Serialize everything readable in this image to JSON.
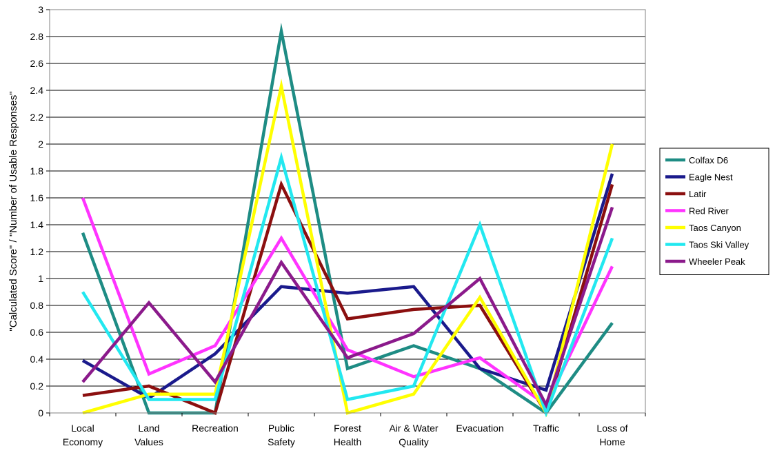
{
  "chart_data": {
    "type": "line",
    "title": "",
    "xlabel": "",
    "ylabel": "\"Calculated Score\" / \"Number of Usable Responses\"",
    "ylim": [
      0,
      3
    ],
    "ytick_step": 0.2,
    "yticks": [
      "0",
      "0.2",
      "0.4",
      "0.6",
      "0.8",
      "1",
      "1.2",
      "1.4",
      "1.6",
      "1.8",
      "2",
      "2.2",
      "2.4",
      "2.6",
      "2.8",
      "3"
    ],
    "grid": true,
    "legend_position": "right",
    "categories": [
      [
        "Local",
        "Economy"
      ],
      [
        "Land",
        "Values"
      ],
      [
        "Recreation"
      ],
      [
        "Public",
        "Safety"
      ],
      [
        "Forest",
        "Health"
      ],
      [
        "Air & Water",
        "Quality"
      ],
      [
        "Evacuation"
      ],
      [
        "Traffic"
      ],
      [
        "Loss of",
        "Home"
      ]
    ],
    "series": [
      {
        "name": "Colfax D6",
        "color": "#1e8c84",
        "values": [
          1.34,
          0.0,
          0.0,
          2.84,
          0.33,
          0.5,
          0.33,
          0.0,
          0.67
        ]
      },
      {
        "name": "Eagle Nest",
        "color": "#1a1a8c",
        "values": [
          0.39,
          0.11,
          0.44,
          0.94,
          0.89,
          0.94,
          0.33,
          0.17,
          1.78
        ]
      },
      {
        "name": "Latir",
        "color": "#8b0f0f",
        "values": [
          0.13,
          0.2,
          0.0,
          1.7,
          0.7,
          0.77,
          0.8,
          0.0,
          1.7
        ]
      },
      {
        "name": "Red River",
        "color": "#ff33ff",
        "values": [
          1.6,
          0.29,
          0.5,
          1.3,
          0.47,
          0.27,
          0.41,
          0.06,
          1.09
        ]
      },
      {
        "name": "Taos Canyon",
        "color": "#ffff00",
        "values": [
          0.0,
          0.14,
          0.14,
          2.43,
          0.0,
          0.14,
          0.86,
          0.0,
          2.0
        ]
      },
      {
        "name": "Taos Ski Valley",
        "color": "#22e8f0",
        "values": [
          0.9,
          0.1,
          0.1,
          1.9,
          0.1,
          0.2,
          1.4,
          0.0,
          1.3
        ]
      },
      {
        "name": "Wheeler Peak",
        "color": "#8b1a8b",
        "values": [
          0.23,
          0.82,
          0.23,
          1.12,
          0.41,
          0.59,
          1.0,
          0.06,
          1.53
        ]
      }
    ]
  }
}
